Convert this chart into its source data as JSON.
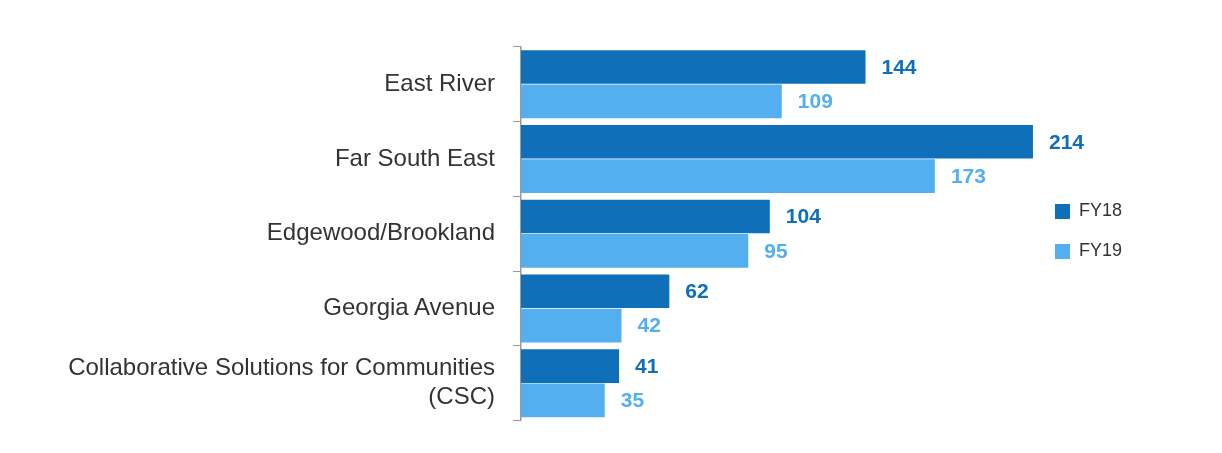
{
  "chart_data": {
    "type": "bar",
    "orientation": "horizontal",
    "data_labels": true,
    "legend": "right",
    "grid": false,
    "categories": [
      "East River",
      "Far South East",
      "Edgewood/Brookland",
      "Georgia Avenue",
      "Collaborative Solutions for Communities (CSC)"
    ],
    "series": [
      {
        "name": "FY18",
        "color": "#0f6fb8",
        "values": [
          144,
          214,
          104,
          62,
          41
        ]
      },
      {
        "name": "FY19",
        "color": "#53aff0",
        "values": [
          109,
          173,
          95,
          42,
          35
        ]
      }
    ]
  }
}
